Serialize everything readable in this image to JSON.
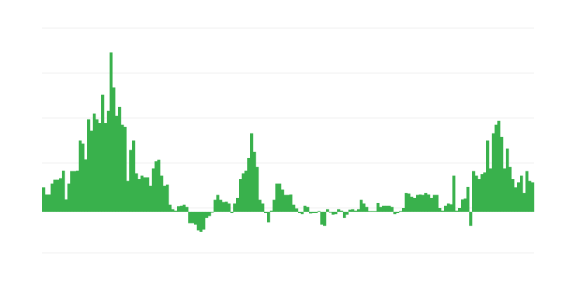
{
  "chart_data": {
    "type": "bar",
    "title": "",
    "xlabel": "",
    "ylabel": "",
    "ylim": [
      -91,
      409
    ],
    "grid": true,
    "gridline_count": 6,
    "legend": "none",
    "bar_color": "#39b14c",
    "grid_color": "#ececec",
    "values": [
      55,
      39,
      39,
      63,
      72,
      72,
      75,
      92,
      28,
      63,
      91,
      91,
      92,
      159,
      152,
      117,
      206,
      181,
      219,
      206,
      198,
      261,
      198,
      225,
      355,
      277,
      214,
      234,
      194,
      189,
      69,
      138,
      159,
      86,
      73,
      81,
      77,
      77,
      58,
      97,
      113,
      116,
      81,
      58,
      61,
      16,
      6,
      3,
      13,
      14,
      16,
      11,
      -25,
      -25,
      -28,
      -41,
      -44,
      -39,
      -13,
      -9,
      0,
      27,
      38,
      27,
      22,
      23,
      19,
      -2,
      19,
      31,
      73,
      86,
      92,
      120,
      175,
      134,
      100,
      27,
      19,
      -2,
      -23,
      3,
      27,
      63,
      63,
      50,
      38,
      38,
      39,
      16,
      8,
      -2,
      -5,
      14,
      11,
      -3,
      -2,
      -2,
      2,
      -28,
      -31,
      6,
      0,
      -6,
      -5,
      6,
      3,
      -13,
      -6,
      5,
      6,
      3,
      6,
      27,
      19,
      11,
      2,
      2,
      2,
      20,
      11,
      14,
      14,
      14,
      11,
      -5,
      -2,
      2,
      9,
      42,
      41,
      34,
      31,
      38,
      39,
      38,
      42,
      39,
      31,
      38,
      38,
      9,
      3,
      14,
      19,
      17,
      81,
      3,
      9,
      28,
      30,
      56,
      -31,
      91,
      81,
      73,
      84,
      88,
      159,
      97,
      175,
      194,
      203,
      167,
      97,
      141,
      100,
      73,
      55,
      66,
      81,
      42,
      91,
      69,
      66
    ]
  }
}
